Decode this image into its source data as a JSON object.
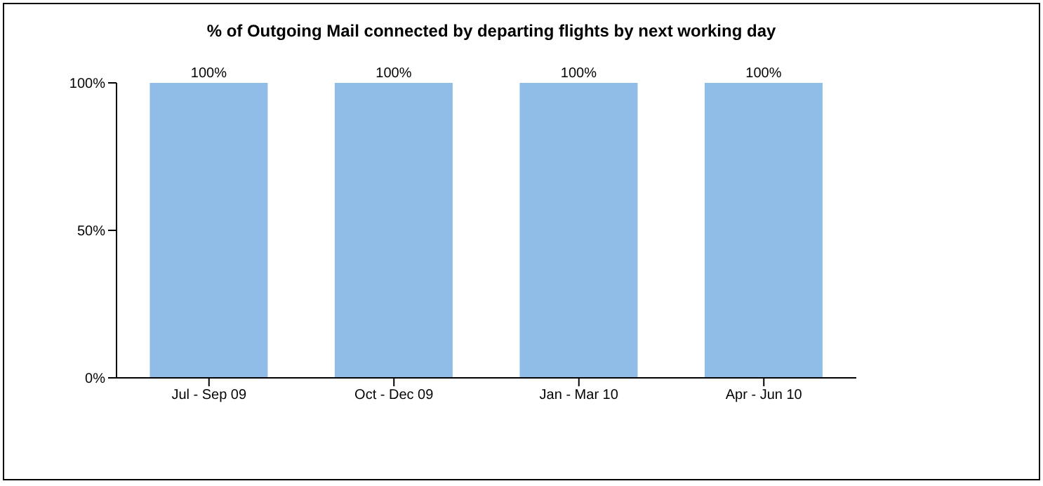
{
  "chart_data": {
    "type": "bar",
    "title": "% of Outgoing Mail connected by departing flights by next working day",
    "categories": [
      "Jul - Sep 09",
      "Oct - Dec 09",
      "Jan - Mar 10",
      "Apr - Jun 10"
    ],
    "values": [
      100,
      100,
      100,
      100
    ],
    "value_labels": [
      "100%",
      "100%",
      "100%",
      "100%"
    ],
    "color": "#8fbde8",
    "ylim": [
      0,
      100
    ],
    "yticks": [
      {
        "value": 0,
        "label": "0%"
      },
      {
        "value": 50,
        "label": "50%"
      },
      {
        "value": 100,
        "label": "100%"
      }
    ],
    "grid": false,
    "legend": false
  }
}
